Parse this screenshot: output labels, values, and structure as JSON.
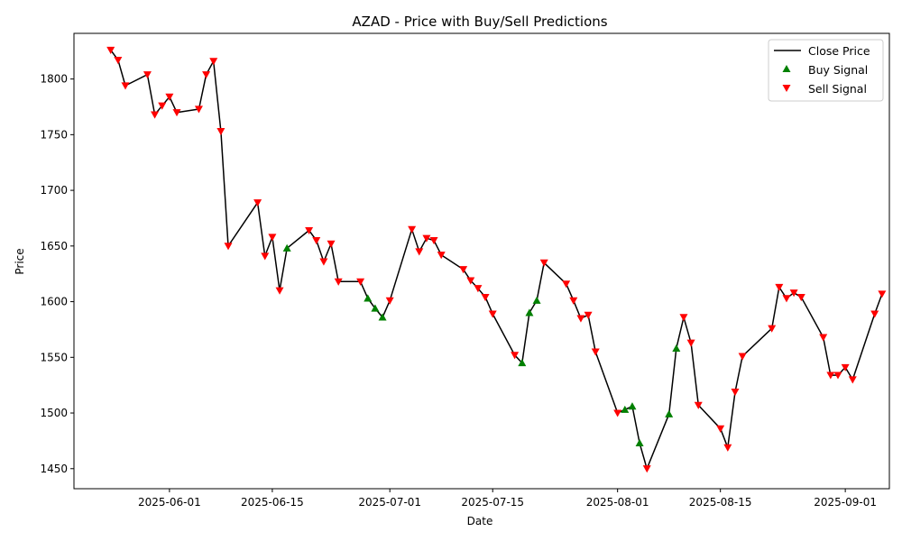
{
  "chart_data": {
    "type": "line",
    "title": "AZAD - Price with Buy/Sell Predictions",
    "xlabel": "Date",
    "ylabel": "Price",
    "xlim": [
      "2025-05-19",
      "2025-09-07"
    ],
    "ylim": [
      1432,
      1841
    ],
    "x_ticks": [
      {
        "date": "2025-06-01",
        "label": "2025-06-01"
      },
      {
        "date": "2025-06-15",
        "label": "2025-06-15"
      },
      {
        "date": "2025-07-01",
        "label": "2025-07-01"
      },
      {
        "date": "2025-07-15",
        "label": "2025-07-15"
      },
      {
        "date": "2025-08-01",
        "label": "2025-08-01"
      },
      {
        "date": "2025-08-15",
        "label": "2025-08-15"
      },
      {
        "date": "2025-09-01",
        "label": "2025-09-01"
      }
    ],
    "y_ticks": [
      {
        "value": 1450,
        "label": "1450"
      },
      {
        "value": 1500,
        "label": "1500"
      },
      {
        "value": 1550,
        "label": "1550"
      },
      {
        "value": 1600,
        "label": "1600"
      },
      {
        "value": 1650,
        "label": "1650"
      },
      {
        "value": 1700,
        "label": "1700"
      },
      {
        "value": 1750,
        "label": "1750"
      },
      {
        "value": 1800,
        "label": "1800"
      }
    ],
    "legend": {
      "placement": "upper right",
      "entries": [
        {
          "key": "close",
          "label": "Close Price",
          "color": "#000000",
          "marker": "line"
        },
        {
          "key": "buy",
          "label": "Buy Signal",
          "color": "#008000",
          "marker": "triangle-up"
        },
        {
          "key": "sell",
          "label": "Sell Signal",
          "color": "#ff0000",
          "marker": "triangle-down"
        }
      ]
    },
    "series": [
      {
        "name": "Close Price",
        "color": "#000000",
        "points": [
          {
            "date": "2025-05-24",
            "value": 1826,
            "signal": "sell"
          },
          {
            "date": "2025-05-25",
            "value": 1817,
            "signal": "sell"
          },
          {
            "date": "2025-05-26",
            "value": 1794,
            "signal": "sell"
          },
          {
            "date": "2025-05-29",
            "value": 1804,
            "signal": "sell"
          },
          {
            "date": "2025-05-30",
            "value": 1768,
            "signal": "sell"
          },
          {
            "date": "2025-05-31",
            "value": 1776,
            "signal": "sell"
          },
          {
            "date": "2025-06-01",
            "value": 1784,
            "signal": "sell"
          },
          {
            "date": "2025-06-02",
            "value": 1770,
            "signal": "sell"
          },
          {
            "date": "2025-06-05",
            "value": 1773,
            "signal": "sell"
          },
          {
            "date": "2025-06-06",
            "value": 1804,
            "signal": "sell"
          },
          {
            "date": "2025-06-07",
            "value": 1816,
            "signal": "sell"
          },
          {
            "date": "2025-06-08",
            "value": 1753,
            "signal": "sell"
          },
          {
            "date": "2025-06-09",
            "value": 1650,
            "signal": "sell"
          },
          {
            "date": "2025-06-13",
            "value": 1689,
            "signal": "sell"
          },
          {
            "date": "2025-06-14",
            "value": 1641,
            "signal": "sell"
          },
          {
            "date": "2025-06-15",
            "value": 1658,
            "signal": "sell"
          },
          {
            "date": "2025-06-16",
            "value": 1610,
            "signal": "sell"
          },
          {
            "date": "2025-06-17",
            "value": 1648,
            "signal": "buy"
          },
          {
            "date": "2025-06-20",
            "value": 1664,
            "signal": "sell"
          },
          {
            "date": "2025-06-21",
            "value": 1655,
            "signal": "sell"
          },
          {
            "date": "2025-06-22",
            "value": 1636,
            "signal": "sell"
          },
          {
            "date": "2025-06-23",
            "value": 1652,
            "signal": "sell"
          },
          {
            "date": "2025-06-24",
            "value": 1618,
            "signal": "sell"
          },
          {
            "date": "2025-06-27",
            "value": 1618,
            "signal": "sell"
          },
          {
            "date": "2025-06-28",
            "value": 1603,
            "signal": "buy"
          },
          {
            "date": "2025-06-29",
            "value": 1594,
            "signal": "buy"
          },
          {
            "date": "2025-06-30",
            "value": 1586,
            "signal": "buy"
          },
          {
            "date": "2025-07-01",
            "value": 1601,
            "signal": "sell"
          },
          {
            "date": "2025-07-04",
            "value": 1665,
            "signal": "sell"
          },
          {
            "date": "2025-07-05",
            "value": 1645,
            "signal": "sell"
          },
          {
            "date": "2025-07-06",
            "value": 1657,
            "signal": "sell"
          },
          {
            "date": "2025-07-07",
            "value": 1655,
            "signal": "sell"
          },
          {
            "date": "2025-07-08",
            "value": 1642,
            "signal": "sell"
          },
          {
            "date": "2025-07-11",
            "value": 1629,
            "signal": "sell"
          },
          {
            "date": "2025-07-12",
            "value": 1619,
            "signal": "sell"
          },
          {
            "date": "2025-07-13",
            "value": 1612,
            "signal": "sell"
          },
          {
            "date": "2025-07-14",
            "value": 1604,
            "signal": "sell"
          },
          {
            "date": "2025-07-15",
            "value": 1589,
            "signal": "sell"
          },
          {
            "date": "2025-07-18",
            "value": 1552,
            "signal": "sell"
          },
          {
            "date": "2025-07-19",
            "value": 1545,
            "signal": "buy"
          },
          {
            "date": "2025-07-20",
            "value": 1590,
            "signal": "buy"
          },
          {
            "date": "2025-07-21",
            "value": 1601,
            "signal": "buy"
          },
          {
            "date": "2025-07-22",
            "value": 1635,
            "signal": "sell"
          },
          {
            "date": "2025-07-25",
            "value": 1616,
            "signal": "sell"
          },
          {
            "date": "2025-07-26",
            "value": 1601,
            "signal": "sell"
          },
          {
            "date": "2025-07-27",
            "value": 1585,
            "signal": "sell"
          },
          {
            "date": "2025-07-28",
            "value": 1588,
            "signal": "sell"
          },
          {
            "date": "2025-07-29",
            "value": 1555,
            "signal": "sell"
          },
          {
            "date": "2025-08-01",
            "value": 1500,
            "signal": "sell"
          },
          {
            "date": "2025-08-02",
            "value": 1503,
            "signal": "buy"
          },
          {
            "date": "2025-08-03",
            "value": 1506,
            "signal": "buy"
          },
          {
            "date": "2025-08-04",
            "value": 1473,
            "signal": "buy"
          },
          {
            "date": "2025-08-05",
            "value": 1450,
            "signal": "sell"
          },
          {
            "date": "2025-08-08",
            "value": 1499,
            "signal": "buy"
          },
          {
            "date": "2025-08-09",
            "value": 1558,
            "signal": "buy"
          },
          {
            "date": "2025-08-10",
            "value": 1586,
            "signal": "sell"
          },
          {
            "date": "2025-08-11",
            "value": 1563,
            "signal": "sell"
          },
          {
            "date": "2025-08-12",
            "value": 1507,
            "signal": "sell"
          },
          {
            "date": "2025-08-15",
            "value": 1486,
            "signal": "sell"
          },
          {
            "date": "2025-08-16",
            "value": 1469,
            "signal": "sell"
          },
          {
            "date": "2025-08-17",
            "value": 1519,
            "signal": "sell"
          },
          {
            "date": "2025-08-18",
            "value": 1551,
            "signal": "sell"
          },
          {
            "date": "2025-08-22",
            "value": 1576,
            "signal": "sell"
          },
          {
            "date": "2025-08-23",
            "value": 1613,
            "signal": "sell"
          },
          {
            "date": "2025-08-24",
            "value": 1603,
            "signal": "sell"
          },
          {
            "date": "2025-08-25",
            "value": 1608,
            "signal": "sell"
          },
          {
            "date": "2025-08-26",
            "value": 1604,
            "signal": "sell"
          },
          {
            "date": "2025-08-29",
            "value": 1568,
            "signal": "sell"
          },
          {
            "date": "2025-08-30",
            "value": 1534,
            "signal": "sell"
          },
          {
            "date": "2025-08-31",
            "value": 1534,
            "signal": "sell"
          },
          {
            "date": "2025-09-01",
            "value": 1541,
            "signal": "sell"
          },
          {
            "date": "2025-09-02",
            "value": 1530,
            "signal": "sell"
          },
          {
            "date": "2025-09-05",
            "value": 1589,
            "signal": "sell"
          },
          {
            "date": "2025-09-06",
            "value": 1607,
            "signal": "sell"
          }
        ]
      }
    ],
    "grid": false
  }
}
